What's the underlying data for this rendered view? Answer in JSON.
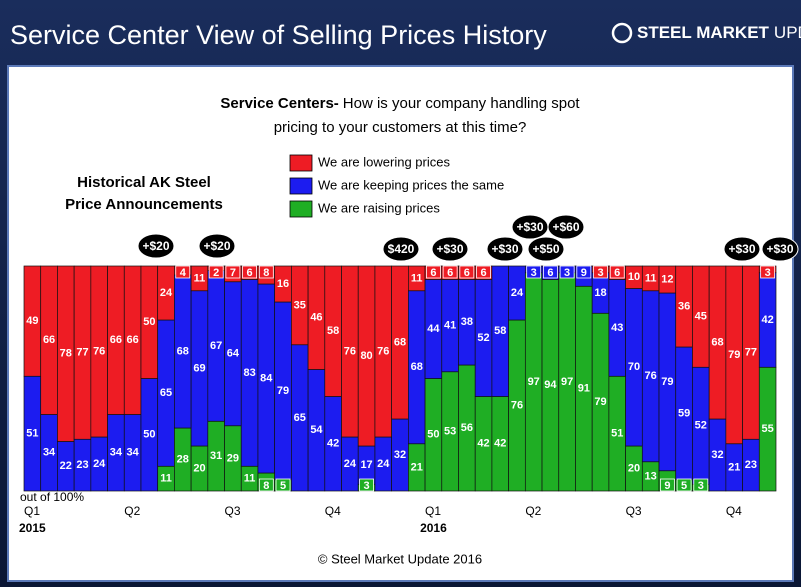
{
  "header": {
    "title": "Service Center View of Selling Prices History",
    "logo_bold": "STEEL MARKET",
    "logo_light": "UPDATE"
  },
  "chart_data": {
    "type": "bar",
    "stacked": true,
    "subtitle": {
      "lead": "Service Centers-",
      "lines": [
        "How is your company handling spot",
        "pricing to your customers at this time?"
      ]
    },
    "annotation_title": [
      "Historical AK Steel",
      "Price Announcements"
    ],
    "annotations": [
      "+$20",
      "+$20",
      "$420",
      "+$30",
      "+$30",
      "+$30",
      "+$50",
      "+$60",
      "+$30",
      "+$30"
    ],
    "y_note": "out of 100%",
    "categories": [
      "Q1",
      null,
      null,
      null,
      null,
      null,
      "Q2",
      null,
      null,
      null,
      null,
      null,
      "Q3",
      null,
      null,
      null,
      null,
      null,
      "Q4",
      null,
      null,
      null,
      null,
      null,
      "Q1",
      null,
      null,
      null,
      null,
      null,
      "Q2",
      null,
      null,
      null,
      null,
      null,
      "Q3",
      null,
      null,
      null,
      null,
      null,
      "Q4",
      null,
      null
    ],
    "years": [
      "2015",
      "2016"
    ],
    "ylim": [
      0,
      100
    ],
    "series": [
      {
        "name": "We are lowering prices",
        "color": "#ee1c24",
        "values": [
          49,
          66,
          78,
          77,
          76,
          66,
          66,
          50,
          24,
          4,
          11,
          2,
          7,
          6,
          8,
          16,
          35,
          46,
          58,
          76,
          80,
          76,
          68,
          11,
          6,
          6,
          6,
          6,
          null,
          null,
          null,
          null,
          null,
          null,
          3,
          6,
          10,
          11,
          12,
          36,
          45,
          68,
          79,
          77,
          3
        ]
      },
      {
        "name": "We are keeping prices the same",
        "color": "#1c1cf0",
        "values": [
          51,
          34,
          22,
          23,
          24,
          34,
          34,
          50,
          65,
          68,
          69,
          67,
          64,
          83,
          84,
          79,
          65,
          54,
          42,
          24,
          17,
          24,
          32,
          68,
          44,
          41,
          38,
          52,
          58,
          24,
          3,
          6,
          3,
          9,
          18,
          43,
          70,
          76,
          79,
          59,
          52,
          32,
          21,
          23,
          42
        ]
      },
      {
        "name": "We are raising prices",
        "color": "#1fae24",
        "values": [
          null,
          null,
          null,
          null,
          null,
          null,
          null,
          null,
          11,
          28,
          20,
          31,
          29,
          11,
          8,
          5,
          null,
          null,
          null,
          null,
          3,
          null,
          null,
          21,
          50,
          53,
          56,
          42,
          42,
          76,
          97,
          94,
          97,
          91,
          79,
          51,
          20,
          13,
          9,
          5,
          3,
          null,
          null,
          null,
          55
        ]
      }
    ],
    "footer": "© Steel Market Update 2016"
  }
}
